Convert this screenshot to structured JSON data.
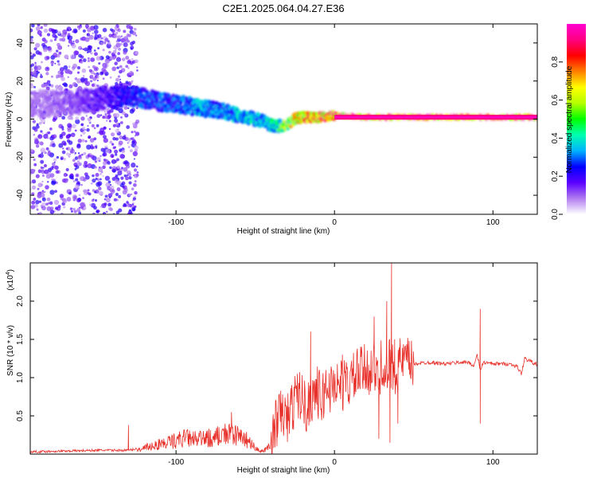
{
  "title": "C2E1.2025.064.04.27.E36",
  "chart_data": [
    {
      "type": "heatmap",
      "xlabel": "Height of straight line (km)",
      "ylabel": "Frequency (Hz)",
      "xlim": [
        -192,
        128
      ],
      "ylim": [
        -50,
        50
      ],
      "xticks": [
        -100,
        0,
        100
      ],
      "xtick_labels": [
        "-100",
        "0",
        "100"
      ],
      "yticks": [
        -40,
        -20,
        0,
        20,
        40
      ],
      "ytick_labels": [
        "-40",
        "-20",
        "0",
        "20",
        "40"
      ],
      "colorbar": {
        "label": "Normalized spectral amplitude",
        "range": [
          0.0,
          1.0
        ],
        "ticks": [
          0.0,
          0.2,
          0.4,
          0.6,
          0.8
        ],
        "tick_labels": [
          "0.0",
          "0.2",
          "0.4",
          "0.6",
          "0.8"
        ],
        "colors": [
          "#ffffff",
          "#b07cf0",
          "#5a00ff",
          "#0000ff",
          "#00b4ff",
          "#00ffb0",
          "#00ff00",
          "#b4ff00",
          "#ffff00",
          "#ff8000",
          "#ff0000",
          "#ff0080",
          "#ff00d0"
        ]
      },
      "ridge": {
        "x": [
          -180,
          -160,
          -145,
          -130,
          -115,
          -100,
          -85,
          -70,
          -55,
          -45,
          -38,
          -30,
          -25,
          -20,
          -10,
          0,
          20,
          40,
          60,
          80,
          90,
          100,
          118,
          128
        ],
        "y": [
          8,
          9,
          11,
          12,
          10,
          8,
          6,
          4,
          1,
          -1,
          -4,
          -3,
          0,
          1,
          1,
          2,
          1,
          1,
          1,
          1,
          1,
          1,
          1,
          1
        ],
        "amplitude": [
          0.1,
          0.15,
          0.2,
          0.25,
          0.3,
          0.3,
          0.35,
          0.35,
          0.4,
          0.35,
          0.45,
          0.6,
          0.7,
          0.8,
          0.85,
          0.9,
          0.9,
          0.9,
          0.9,
          0.9,
          0.95,
          0.9,
          0.9,
          0.9
        ]
      }
    },
    {
      "type": "line",
      "xlabel": "Height of straight line (km)",
      "ylabel": "SNR (10 * v/v)",
      "multiplier": "(x10",
      "multiplier_exp": "4",
      "multiplier_close": ")",
      "xlim": [
        -192,
        128
      ],
      "ylim": [
        0,
        2.5
      ],
      "xticks": [
        -100,
        0,
        100
      ],
      "xtick_labels": [
        "-100",
        "0",
        "100"
      ],
      "yticks": [
        0.5,
        1.0,
        1.5,
        2.0
      ],
      "ytick_labels": [
        "0.5",
        "1.0",
        "1.5",
        "2.0"
      ],
      "line_color": "#e8302a",
      "series": {
        "x": [
          -192,
          -170,
          -150,
          -130,
          -122,
          -115,
          -105,
          -95,
          -85,
          -75,
          -68,
          -60,
          -55,
          -50,
          -45,
          -40,
          -37,
          -33,
          -30,
          -25,
          -22,
          -18,
          -15,
          -12,
          -8,
          -5,
          -2,
          0,
          5,
          10,
          15,
          20,
          25,
          28,
          30,
          33,
          35,
          37,
          40,
          42,
          45,
          50,
          60,
          70,
          80,
          85,
          88,
          90,
          92,
          94,
          100,
          110,
          115,
          118,
          120,
          125,
          128
        ],
        "y": [
          0.03,
          0.04,
          0.05,
          0.05,
          0.08,
          0.15,
          0.2,
          0.28,
          0.25,
          0.3,
          0.35,
          0.3,
          0.25,
          0.1,
          0.05,
          0.15,
          0.4,
          0.55,
          0.45,
          0.7,
          0.8,
          0.6,
          0.75,
          0.85,
          0.7,
          0.9,
          0.85,
          0.95,
          0.9,
          0.95,
          1.05,
          1.1,
          1.15,
          0.9,
          1.25,
          1.0,
          1.2,
          1.1,
          1.15,
          1.2,
          1.2,
          1.18,
          1.2,
          1.18,
          1.2,
          1.2,
          1.15,
          1.3,
          1.1,
          1.2,
          1.18,
          1.18,
          1.15,
          1.05,
          1.25,
          1.2,
          1.17
        ]
      },
      "spikes": [
        {
          "x": -130,
          "y": 0.38
        },
        {
          "x": -65,
          "y": 0.55
        },
        {
          "x": -36,
          "y": 0.55
        },
        {
          "x": -15,
          "y": 1.6
        },
        {
          "x": -18,
          "y": 0.3
        },
        {
          "x": 5,
          "y": 1.3
        },
        {
          "x": 25,
          "y": 1.8
        },
        {
          "x": 28,
          "y": 0.2
        },
        {
          "x": 33,
          "y": 2.0
        },
        {
          "x": 36,
          "y": 2.5
        },
        {
          "x": 35,
          "y": 0.15
        },
        {
          "x": 38,
          "y": 1.5
        },
        {
          "x": 40,
          "y": 0.4
        },
        {
          "x": 92,
          "y": 1.9
        },
        {
          "x": 92,
          "y": 0.4
        }
      ]
    }
  ]
}
